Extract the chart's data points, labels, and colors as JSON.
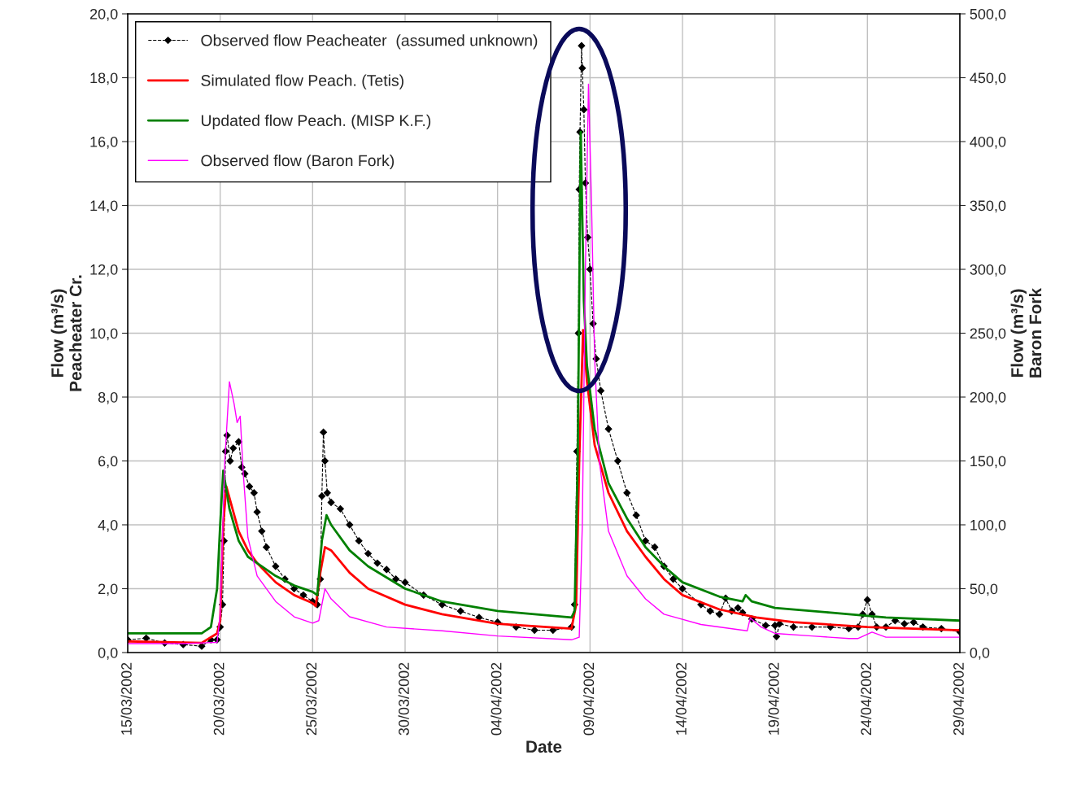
{
  "chart_data": {
    "type": "line",
    "xlabel": "Date",
    "ylabel": "Flow (m³/s)\nPeacheater Cr.",
    "y2label": "Flow (m³/s)\nBaron Fork",
    "xlim": [
      "2002-03-15",
      "2002-04-29"
    ],
    "xticks": [
      {
        "value": "2002-03-15",
        "label": "15/03/2002"
      },
      {
        "value": "2002-03-20",
        "label": "20/03/2002"
      },
      {
        "value": "2002-03-25",
        "label": "25/03/2002"
      },
      {
        "value": "2002-03-30",
        "label": "30/03/2002"
      },
      {
        "value": "2002-04-04",
        "label": "04/04/2002"
      },
      {
        "value": "2002-04-09",
        "label": "09/04/2002"
      },
      {
        "value": "2002-04-14",
        "label": "14/04/2002"
      },
      {
        "value": "2002-04-19",
        "label": "19/04/2002"
      },
      {
        "value": "2002-04-24",
        "label": "24/04/2002"
      },
      {
        "value": "2002-04-29",
        "label": "29/04/2002"
      }
    ],
    "ylim": [
      0,
      20
    ],
    "yticks": [
      {
        "value": 0,
        "label": "0,0"
      },
      {
        "value": 2,
        "label": "2,0"
      },
      {
        "value": 4,
        "label": "4,0"
      },
      {
        "value": 6,
        "label": "6,0"
      },
      {
        "value": 8,
        "label": "8,0"
      },
      {
        "value": 10,
        "label": "10,0"
      },
      {
        "value": 12,
        "label": "12,0"
      },
      {
        "value": 14,
        "label": "14,0"
      },
      {
        "value": 16,
        "label": "16,0"
      },
      {
        "value": 18,
        "label": "18,0"
      },
      {
        "value": 20,
        "label": "20,0"
      }
    ],
    "y2lim": [
      0,
      500
    ],
    "y2ticks": [
      {
        "value": 0,
        "label": "0,0"
      },
      {
        "value": 50,
        "label": "50,0"
      },
      {
        "value": 100,
        "label": "100,0"
      },
      {
        "value": 150,
        "label": "150,0"
      },
      {
        "value": 200,
        "label": "200,0"
      },
      {
        "value": 250,
        "label": "250,0"
      },
      {
        "value": 300,
        "label": "300,0"
      },
      {
        "value": 350,
        "label": "350,0"
      },
      {
        "value": 400,
        "label": "400,0"
      },
      {
        "value": 450,
        "label": "450,0"
      },
      {
        "value": 500,
        "label": "500,0"
      }
    ],
    "grid": true,
    "legend": "top left",
    "series": [
      {
        "name": "Observed flow Peacheater  (assumed unknown)",
        "color": "#000000",
        "marker": "diamond",
        "line_style": "dashed",
        "x": [
          "2002-03-15T00:00",
          "2002-03-16T00:00",
          "2002-03-17T00:00",
          "2002-03-18T00:00",
          "2002-03-19T00:00",
          "2002-03-19T12:00",
          "2002-03-19T20:00",
          "2002-03-20T00:00",
          "2002-03-20T03:00",
          "2002-03-20T05:00",
          "2002-03-20T07:00",
          "2002-03-20T09:00",
          "2002-03-20T13:00",
          "2002-03-20T17:00",
          "2002-03-21T00:00",
          "2002-03-21T04:00",
          "2002-03-21T08:00",
          "2002-03-21T14:00",
          "2002-03-21T20:00",
          "2002-03-22T00:00",
          "2002-03-22T06:00",
          "2002-03-22T12:00",
          "2002-03-23T00:00",
          "2002-03-23T12:00",
          "2002-03-24T00:00",
          "2002-03-24T12:00",
          "2002-03-25T00:00",
          "2002-03-25T06:00",
          "2002-03-25T10:00",
          "2002-03-25T12:00",
          "2002-03-25T14:00",
          "2002-03-25T16:00",
          "2002-03-25T19:00",
          "2002-03-26T00:00",
          "2002-03-26T12:00",
          "2002-03-27T00:00",
          "2002-03-27T12:00",
          "2002-03-28T00:00",
          "2002-03-28T12:00",
          "2002-03-29T00:00",
          "2002-03-29T12:00",
          "2002-03-30T00:00",
          "2002-03-31T00:00",
          "2002-04-01T00:00",
          "2002-04-02T00:00",
          "2002-04-03T00:00",
          "2002-04-04T00:00",
          "2002-04-05T00:00",
          "2002-04-06T00:00",
          "2002-04-07T00:00",
          "2002-04-08T00:00",
          "2002-04-08T04:00",
          "2002-04-08T07:00",
          "2002-04-08T09:00",
          "2002-04-08T10:00",
          "2002-04-08T11:00",
          "2002-04-08T13:00",
          "2002-04-08T14:00",
          "2002-04-08T16:00",
          "2002-04-08T18:00",
          "2002-04-08T21:00",
          "2002-04-09T00:00",
          "2002-04-09T04:00",
          "2002-04-09T08:00",
          "2002-04-09T14:00",
          "2002-04-10T00:00",
          "2002-04-10T12:00",
          "2002-04-11T00:00",
          "2002-04-11T12:00",
          "2002-04-12T00:00",
          "2002-04-12T12:00",
          "2002-04-13T00:00",
          "2002-04-13T12:00",
          "2002-04-14T00:00",
          "2002-04-15T00:00",
          "2002-04-15T12:00",
          "2002-04-16T00:00",
          "2002-04-16T08:00",
          "2002-04-16T16:00",
          "2002-04-17T00:00",
          "2002-04-17T06:00",
          "2002-04-17T18:00",
          "2002-04-18T12:00",
          "2002-04-19T00:00",
          "2002-04-19T02:00",
          "2002-04-19T06:00",
          "2002-04-20T00:00",
          "2002-04-21T00:00",
          "2002-04-22T00:00",
          "2002-04-23T00:00",
          "2002-04-23T12:00",
          "2002-04-23T18:00",
          "2002-04-24T00:00",
          "2002-04-24T06:00",
          "2002-04-24T12:00",
          "2002-04-25T00:00",
          "2002-04-25T12:00",
          "2002-04-26T00:00",
          "2002-04-26T12:00",
          "2002-04-27T00:00",
          "2002-04-28T00:00",
          "2002-04-29T00:00"
        ],
        "values": [
          0.4,
          0.45,
          0.3,
          0.25,
          0.2,
          0.4,
          0.4,
          0.8,
          1.5,
          3.5,
          6.3,
          6.8,
          6.0,
          6.4,
          6.6,
          5.8,
          5.6,
          5.2,
          5.0,
          4.4,
          3.8,
          3.3,
          2.7,
          2.3,
          2.0,
          1.8,
          1.6,
          1.5,
          2.3,
          4.9,
          6.9,
          6.0,
          5.0,
          4.7,
          4.5,
          4.0,
          3.5,
          3.1,
          2.8,
          2.6,
          2.3,
          2.2,
          1.8,
          1.5,
          1.3,
          1.1,
          0.95,
          0.8,
          0.7,
          0.7,
          0.8,
          1.5,
          6.3,
          10.0,
          14.5,
          16.3,
          19.0,
          18.3,
          17.0,
          14.7,
          13.0,
          12.0,
          10.3,
          9.2,
          8.2,
          7.0,
          6.0,
          5.0,
          4.3,
          3.5,
          3.3,
          2.7,
          2.3,
          2.0,
          1.5,
          1.3,
          1.2,
          1.7,
          1.3,
          1.4,
          1.25,
          1.05,
          0.85,
          0.85,
          0.5,
          0.9,
          0.8,
          0.8,
          0.8,
          0.75,
          0.8,
          1.2,
          1.65,
          1.2,
          0.8,
          0.8,
          1.0,
          0.9,
          0.95,
          0.8,
          0.75,
          0.65
        ]
      },
      {
        "name": "Simulated flow Peach. (Tetis)",
        "color": "#ff0000",
        "marker": "none",
        "line_style": "solid",
        "x": [
          "2002-03-15T00:00",
          "2002-03-19T00:00",
          "2002-03-19T20:00",
          "2002-03-20T00:00",
          "2002-03-20T04:00",
          "2002-03-20T08:00",
          "2002-03-20T16:00",
          "2002-03-21T00:00",
          "2002-03-21T12:00",
          "2002-03-22T00:00",
          "2002-03-23T00:00",
          "2002-03-24T00:00",
          "2002-03-25T00:00",
          "2002-03-25T04:00",
          "2002-03-25T10:00",
          "2002-03-25T16:00",
          "2002-03-26T00:00",
          "2002-03-27T00:00",
          "2002-03-28T00:00",
          "2002-03-30T00:00",
          "2002-04-01T00:00",
          "2002-04-04T00:00",
          "2002-04-08T00:00",
          "2002-04-08T06:00",
          "2002-04-08T10:00",
          "2002-04-08T15:00",
          "2002-04-08T20:00",
          "2002-04-09T06:00",
          "2002-04-10T00:00",
          "2002-04-11T00:00",
          "2002-04-12T00:00",
          "2002-04-13T00:00",
          "2002-04-14T00:00",
          "2002-04-16T00:00",
          "2002-04-18T00:00",
          "2002-04-20T00:00",
          "2002-04-24T00:00",
          "2002-04-29T00:00"
        ],
        "values": [
          0.35,
          0.3,
          0.6,
          1.0,
          4.0,
          5.2,
          4.5,
          3.8,
          3.2,
          2.8,
          2.2,
          1.8,
          1.55,
          1.45,
          2.5,
          3.3,
          3.2,
          2.5,
          2.0,
          1.5,
          1.2,
          0.9,
          0.75,
          1.5,
          6.0,
          10.1,
          8.5,
          6.5,
          5.0,
          3.8,
          3.0,
          2.3,
          1.8,
          1.35,
          1.1,
          0.95,
          0.8,
          0.7
        ]
      },
      {
        "name": "Updated flow Peach. (MISP K.F.)",
        "color": "#008000",
        "marker": "none",
        "line_style": "solid",
        "x": [
          "2002-03-15T00:00",
          "2002-03-19T00:00",
          "2002-03-19T12:00",
          "2002-03-19T20:00",
          "2002-03-20T00:00",
          "2002-03-20T04:00",
          "2002-03-20T12:00",
          "2002-03-21T00:00",
          "2002-03-21T12:00",
          "2002-03-22T00:00",
          "2002-03-23T00:00",
          "2002-03-24T00:00",
          "2002-03-25T00:00",
          "2002-03-25T06:00",
          "2002-03-25T12:00",
          "2002-03-25T18:00",
          "2002-03-26T00:00",
          "2002-03-27T00:00",
          "2002-03-28T00:00",
          "2002-03-30T00:00",
          "2002-04-01T00:00",
          "2002-04-04T00:00",
          "2002-04-08T00:00",
          "2002-04-08T04:00",
          "2002-04-08T08:00",
          "2002-04-08T12:00",
          "2002-04-08T16:00",
          "2002-04-08T20:00",
          "2002-04-09T06:00",
          "2002-04-10T00:00",
          "2002-04-11T00:00",
          "2002-04-12T00:00",
          "2002-04-13T00:00",
          "2002-04-14T00:00",
          "2002-04-16T00:00",
          "2002-04-17T06:00",
          "2002-04-17T10:00",
          "2002-04-17T18:00",
          "2002-04-19T00:00",
          "2002-04-22T00:00",
          "2002-04-25T00:00",
          "2002-04-29T00:00"
        ],
        "values": [
          0.6,
          0.6,
          0.8,
          2.0,
          4.0,
          5.7,
          4.5,
          3.5,
          3.0,
          2.8,
          2.4,
          2.1,
          1.9,
          1.8,
          3.5,
          4.3,
          4.0,
          3.2,
          2.7,
          2.0,
          1.6,
          1.3,
          1.1,
          1.3,
          6.0,
          16.3,
          11.0,
          9.0,
          7.0,
          5.3,
          4.2,
          3.3,
          2.7,
          2.2,
          1.75,
          1.6,
          1.8,
          1.6,
          1.4,
          1.25,
          1.1,
          1.0
        ]
      },
      {
        "name": "Observed flow (Baron Fork)",
        "color": "#ff00ff",
        "marker": "none",
        "line_style": "solid",
        "axis": "y2",
        "x": [
          "2002-03-15T00:00",
          "2002-03-18T00:00",
          "2002-03-19T20:00",
          "2002-03-20T00:00",
          "2002-03-20T06:00",
          "2002-03-20T12:00",
          "2002-03-20T18:00",
          "2002-03-20T22:00",
          "2002-03-21T02:00",
          "2002-03-21T06:00",
          "2002-03-21T12:00",
          "2002-03-22T00:00",
          "2002-03-23T00:00",
          "2002-03-24T00:00",
          "2002-03-25T00:00",
          "2002-03-25T08:00",
          "2002-03-25T16:00",
          "2002-03-26T00:00",
          "2002-03-27T00:00",
          "2002-03-29T00:00",
          "2002-04-01T00:00",
          "2002-04-04T00:00",
          "2002-04-08T00:00",
          "2002-04-08T10:00",
          "2002-04-08T14:00",
          "2002-04-08T18:00",
          "2002-04-08T22:00",
          "2002-04-09T02:00",
          "2002-04-09T06:00",
          "2002-04-09T12:00",
          "2002-04-10T00:00",
          "2002-04-11T00:00",
          "2002-04-12T00:00",
          "2002-04-13T00:00",
          "2002-04-15T00:00",
          "2002-04-17T00:00",
          "2002-04-17T12:00",
          "2002-04-17T16:00",
          "2002-04-18T06:00",
          "2002-04-19T00:00",
          "2002-04-21T00:00",
          "2002-04-23T00:00",
          "2002-04-23T12:00",
          "2002-04-24T06:00",
          "2002-04-25T00:00",
          "2002-04-29T00:00"
        ],
        "values": [
          7,
          7,
          8,
          30,
          150,
          212,
          195,
          180,
          185,
          140,
          90,
          60,
          40,
          28,
          23,
          25,
          50,
          42,
          28,
          20,
          17,
          13,
          10,
          12,
          100,
          300,
          445,
          350,
          230,
          150,
          95,
          60,
          42,
          30,
          22,
          18,
          17,
          27,
          20,
          15,
          13,
          11,
          11,
          16,
          12,
          12
        ]
      }
    ]
  }
}
